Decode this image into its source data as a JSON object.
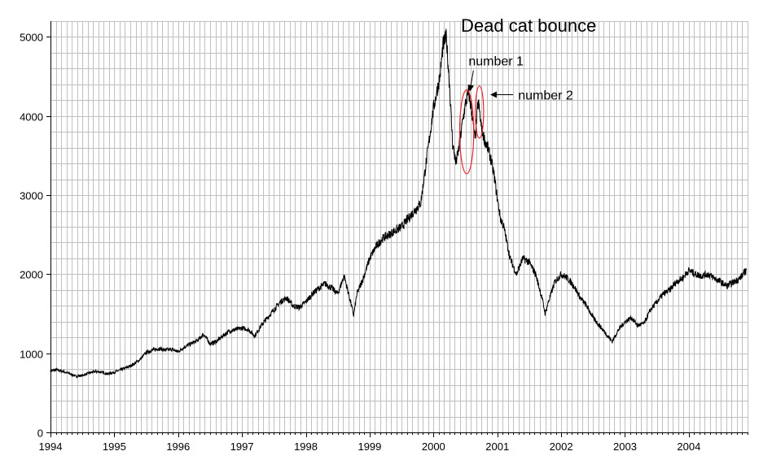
{
  "chart_data": {
    "type": "line",
    "title": "Dead cat bounce",
    "xlabel": "",
    "ylabel": "",
    "xlim": [
      1994,
      2004.92
    ],
    "ylim": [
      0,
      5200
    ],
    "grid": true,
    "x_ticks": [
      "1994",
      "1995",
      "1996",
      "1997",
      "1998",
      "1999",
      "2000",
      "2001",
      "2002",
      "2003",
      "2004"
    ],
    "y_ticks": [
      "0",
      "1000",
      "2000",
      "3000",
      "4000",
      "5000"
    ],
    "series": [
      {
        "name": "index",
        "color": "#000000",
        "x": [
          1994.0,
          1994.1,
          1994.2,
          1994.3,
          1994.4,
          1994.5,
          1994.6,
          1994.7,
          1994.8,
          1994.9,
          1995.0,
          1995.1,
          1995.2,
          1995.3,
          1995.4,
          1995.5,
          1995.6,
          1995.7,
          1995.8,
          1995.9,
          1996.0,
          1996.1,
          1996.2,
          1996.3,
          1996.4,
          1996.5,
          1996.6,
          1996.7,
          1996.8,
          1996.9,
          1997.0,
          1997.1,
          1997.2,
          1997.3,
          1997.4,
          1997.5,
          1997.6,
          1997.7,
          1997.8,
          1997.9,
          1998.0,
          1998.1,
          1998.2,
          1998.3,
          1998.4,
          1998.5,
          1998.6,
          1998.7,
          1998.75,
          1998.8,
          1998.9,
          1999.0,
          1999.1,
          1999.2,
          1999.3,
          1999.4,
          1999.5,
          1999.6,
          1999.7,
          1999.8,
          1999.9,
          2000.0,
          2000.05,
          2000.1,
          2000.15,
          2000.2,
          2000.25,
          2000.3,
          2000.35,
          2000.4,
          2000.45,
          2000.5,
          2000.55,
          2000.6,
          2000.65,
          2000.7,
          2000.75,
          2000.8,
          2000.85,
          2000.9,
          2000.95,
          2001.0,
          2001.05,
          2001.1,
          2001.15,
          2001.2,
          2001.25,
          2001.3,
          2001.4,
          2001.5,
          2001.6,
          2001.7,
          2001.75,
          2001.8,
          2001.9,
          2002.0,
          2002.1,
          2002.2,
          2002.3,
          2002.4,
          2002.5,
          2002.6,
          2002.7,
          2002.8,
          2002.9,
          2003.0,
          2003.1,
          2003.2,
          2003.3,
          2003.4,
          2003.5,
          2003.6,
          2003.7,
          2003.8,
          2003.9,
          2004.0,
          2004.1,
          2004.2,
          2004.3,
          2004.4,
          2004.5,
          2004.6,
          2004.7,
          2004.8,
          2004.9
        ],
        "y": [
          780,
          790,
          770,
          740,
          710,
          720,
          750,
          770,
          760,
          740,
          760,
          790,
          820,
          860,
          920,
          1010,
          1040,
          1060,
          1040,
          1050,
          1020,
          1080,
          1120,
          1160,
          1240,
          1120,
          1150,
          1220,
          1280,
          1300,
          1320,
          1300,
          1220,
          1350,
          1450,
          1550,
          1650,
          1700,
          1600,
          1580,
          1650,
          1750,
          1820,
          1880,
          1830,
          1750,
          1980,
          1650,
          1480,
          1750,
          1950,
          2200,
          2350,
          2450,
          2500,
          2550,
          2600,
          2700,
          2800,
          2900,
          3500,
          4100,
          4300,
          4500,
          4900,
          5000,
          4400,
          3650,
          3400,
          3600,
          3900,
          4150,
          4300,
          4050,
          3700,
          4200,
          3850,
          3700,
          3600,
          3450,
          3250,
          2950,
          2700,
          2600,
          2400,
          2200,
          2100,
          2000,
          2200,
          2150,
          2000,
          1700,
          1500,
          1650,
          1900,
          2000,
          1950,
          1850,
          1700,
          1600,
          1450,
          1350,
          1250,
          1150,
          1300,
          1400,
          1450,
          1350,
          1380,
          1550,
          1650,
          1750,
          1800,
          1900,
          1950,
          2050,
          2000,
          1980,
          2000,
          1950,
          1900,
          1850,
          1900,
          1950,
          2050
        ]
      }
    ],
    "annotations": [
      {
        "text": "number 1",
        "x": 2000.57,
        "y": 4320,
        "label_x": 2000.6,
        "label_y": 4700
      },
      {
        "text": "number 2",
        "x": 2000.85,
        "y": 4270,
        "label_x": 2001.3,
        "label_y": 4270
      }
    ],
    "highlight_ellipses": [
      {
        "cx": 2000.52,
        "cy": 3800,
        "rx": 0.11,
        "ry": 530
      },
      {
        "cx": 2000.72,
        "cy": 4050,
        "rx": 0.065,
        "ry": 330
      }
    ]
  }
}
